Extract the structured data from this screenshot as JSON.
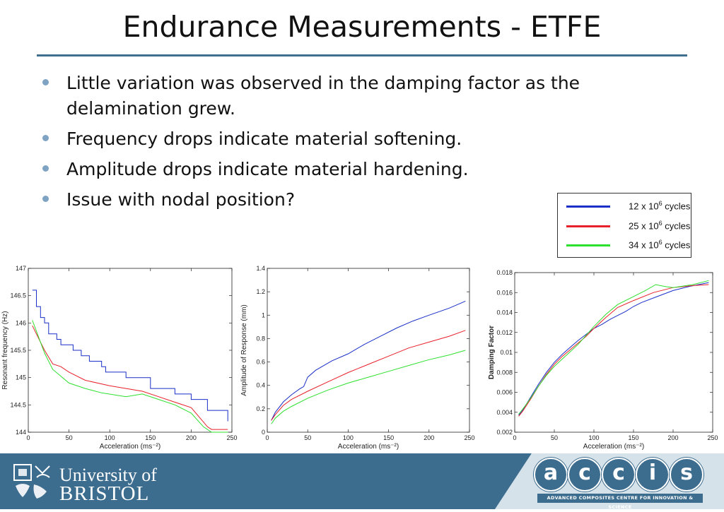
{
  "slide": {
    "title": "Endurance Measurements - ETFE",
    "bullets": [
      "Little variation was observed in the damping factor as the delamination grew.",
      "Frequency drops indicate material softening.",
      "Amplitude drops indicate material hardening.",
      "Issue with nodal position?"
    ]
  },
  "legend": [
    {
      "prefix": "12 x 10",
      "exp": "6",
      "suffix": " cycles",
      "color": "#1a2fc8"
    },
    {
      "prefix": "25 x 10",
      "exp": "6",
      "suffix": " cycles",
      "color": "#e8202a"
    },
    {
      "prefix": "34 x 10",
      "exp": "6",
      "suffix": " cycles",
      "color": "#2ee02e"
    }
  ],
  "chart_data": [
    {
      "type": "line",
      "xlabel": "Acceleration (ms⁻²)",
      "ylabel": "Resonant frequency (Hz)",
      "xlim": [
        0,
        250
      ],
      "ylim": [
        144,
        147
      ],
      "xticks": [
        0,
        50,
        100,
        150,
        200,
        250
      ],
      "yticks": [
        144,
        144.5,
        145,
        145.5,
        146,
        146.5,
        147
      ],
      "yticklabels": [
        "144",
        "144.5",
        "145",
        "145.5",
        "146",
        "146.5",
        "147"
      ],
      "series": [
        {
          "name": "12 x 10^6 cycles",
          "color": "#1a2fc8",
          "step": true,
          "points": [
            [
              5,
              146.6
            ],
            [
              10,
              146.3
            ],
            [
              15,
              146.1
            ],
            [
              20,
              146
            ],
            [
              25,
              145.8
            ],
            [
              30,
              145.8
            ],
            [
              35,
              145.7
            ],
            [
              40,
              145.6
            ],
            [
              50,
              145.6
            ],
            [
              55,
              145.5
            ],
            [
              60,
              145.5
            ],
            [
              65,
              145.4
            ],
            [
              70,
              145.4
            ],
            [
              75,
              145.3
            ],
            [
              85,
              145.3
            ],
            [
              90,
              145.2
            ],
            [
              95,
              145.1
            ],
            [
              115,
              145.1
            ],
            [
              120,
              145
            ],
            [
              145,
              145
            ],
            [
              150,
              144.8
            ],
            [
              160,
              144.8
            ],
            [
              180,
              144.7
            ],
            [
              200,
              144.6
            ],
            [
              220,
              144.4
            ],
            [
              245,
              144.2
            ]
          ]
        },
        {
          "name": "25 x 10^6 cycles",
          "color": "#e8202a",
          "step": false,
          "points": [
            [
              5,
              145.95
            ],
            [
              10,
              145.8
            ],
            [
              20,
              145.5
            ],
            [
              30,
              145.25
            ],
            [
              40,
              145.2
            ],
            [
              50,
              145.1
            ],
            [
              70,
              144.95
            ],
            [
              100,
              144.85
            ],
            [
              140,
              144.75
            ],
            [
              160,
              144.65
            ],
            [
              180,
              144.55
            ],
            [
              200,
              144.45
            ],
            [
              220,
              144.1
            ],
            [
              225,
              144.05
            ],
            [
              245,
              144.05
            ]
          ]
        },
        {
          "name": "34 x 10^6 cycles",
          "color": "#2ee02e",
          "step": false,
          "points": [
            [
              5,
              146.05
            ],
            [
              10,
              145.85
            ],
            [
              20,
              145.45
            ],
            [
              30,
              145.15
            ],
            [
              50,
              144.9
            ],
            [
              70,
              144.8
            ],
            [
              90,
              144.72
            ],
            [
              120,
              144.65
            ],
            [
              140,
              144.7
            ],
            [
              160,
              144.6
            ],
            [
              180,
              144.5
            ],
            [
              200,
              144.35
            ],
            [
              215,
              144.1
            ],
            [
              225,
              144
            ],
            [
              245,
              144
            ]
          ]
        }
      ]
    },
    {
      "type": "line",
      "xlabel": "Acceleration (ms⁻²)",
      "ylabel": "Amplitude of Response (mm)",
      "xlim": [
        0,
        250
      ],
      "ylim": [
        0,
        1.4
      ],
      "xticks": [
        0,
        50,
        100,
        150,
        200,
        250
      ],
      "yticks": [
        0,
        0.2,
        0.4,
        0.6,
        0.8,
        1,
        1.2,
        1.4
      ],
      "yticklabels": [
        "0",
        "0.2",
        "0.4",
        "0.6",
        "0.8",
        "1",
        "1.2",
        "1.4"
      ],
      "series": [
        {
          "name": "12 x 10^6 cycles",
          "color": "#1a2fc8",
          "step": false,
          "points": [
            [
              5,
              0.1
            ],
            [
              10,
              0.17
            ],
            [
              20,
              0.26
            ],
            [
              30,
              0.32
            ],
            [
              40,
              0.37
            ],
            [
              45,
              0.39
            ],
            [
              50,
              0.47
            ],
            [
              60,
              0.53
            ],
            [
              80,
              0.61
            ],
            [
              100,
              0.67
            ],
            [
              120,
              0.75
            ],
            [
              140,
              0.82
            ],
            [
              160,
              0.89
            ],
            [
              180,
              0.95
            ],
            [
              200,
              1.0
            ],
            [
              225,
              1.06
            ],
            [
              245,
              1.12
            ]
          ]
        },
        {
          "name": "25 x 10^6 cycles",
          "color": "#e8202a",
          "step": false,
          "points": [
            [
              5,
              0.1
            ],
            [
              10,
              0.15
            ],
            [
              20,
              0.23
            ],
            [
              30,
              0.28
            ],
            [
              50,
              0.35
            ],
            [
              75,
              0.43
            ],
            [
              100,
              0.51
            ],
            [
              125,
              0.58
            ],
            [
              150,
              0.65
            ],
            [
              175,
              0.72
            ],
            [
              200,
              0.77
            ],
            [
              225,
              0.82
            ],
            [
              245,
              0.87
            ]
          ]
        },
        {
          "name": "34 x 10^6 cycles",
          "color": "#2ee02e",
          "step": false,
          "points": [
            [
              5,
              0.07
            ],
            [
              10,
              0.12
            ],
            [
              20,
              0.18
            ],
            [
              30,
              0.22
            ],
            [
              50,
              0.29
            ],
            [
              75,
              0.36
            ],
            [
              100,
              0.42
            ],
            [
              125,
              0.47
            ],
            [
              150,
              0.52
            ],
            [
              175,
              0.57
            ],
            [
              200,
              0.62
            ],
            [
              225,
              0.66
            ],
            [
              245,
              0.7
            ]
          ]
        }
      ]
    },
    {
      "type": "line",
      "xlabel": "Acceleration (ms⁻²)",
      "ylabel": "Damping Factor",
      "xlim": [
        0,
        250
      ],
      "ylim": [
        0.002,
        0.018
      ],
      "xticks": [
        0,
        50,
        100,
        150,
        200,
        250
      ],
      "yticks": [
        0.002,
        0.004,
        0.006,
        0.008,
        0.01,
        0.012,
        0.014,
        0.016,
        0.018
      ],
      "yticklabels": [
        "0.002",
        "0.004",
        "0.006",
        "0.008",
        "0.01",
        "0.012",
        "0.014",
        "0.016",
        "0.018"
      ],
      "series": [
        {
          "name": "12 x 10^6 cycles",
          "color": "#1a2fc8",
          "step": false,
          "points": [
            [
              5,
              0.0037
            ],
            [
              10,
              0.0042
            ],
            [
              20,
              0.0055
            ],
            [
              30,
              0.0068
            ],
            [
              40,
              0.008
            ],
            [
              50,
              0.009
            ],
            [
              60,
              0.0098
            ],
            [
              70,
              0.0105
            ],
            [
              80,
              0.0112
            ],
            [
              90,
              0.0118
            ],
            [
              100,
              0.0124
            ],
            [
              110,
              0.0128
            ],
            [
              120,
              0.0133
            ],
            [
              130,
              0.0137
            ],
            [
              140,
              0.0141
            ],
            [
              150,
              0.0146
            ],
            [
              160,
              0.015
            ],
            [
              180,
              0.0156
            ],
            [
              200,
              0.0162
            ],
            [
              220,
              0.0166
            ],
            [
              245,
              0.017
            ]
          ]
        },
        {
          "name": "25 x 10^6 cycles",
          "color": "#e8202a",
          "step": false,
          "points": [
            [
              5,
              0.0036
            ],
            [
              10,
              0.0041
            ],
            [
              20,
              0.0053
            ],
            [
              30,
              0.0066
            ],
            [
              40,
              0.0078
            ],
            [
              50,
              0.0088
            ],
            [
              60,
              0.0096
            ],
            [
              75,
              0.0106
            ],
            [
              90,
              0.0116
            ],
            [
              100,
              0.0124
            ],
            [
              115,
              0.0135
            ],
            [
              130,
              0.0145
            ],
            [
              150,
              0.0152
            ],
            [
              175,
              0.016
            ],
            [
              200,
              0.0165
            ],
            [
              225,
              0.0167
            ],
            [
              245,
              0.0168
            ]
          ]
        },
        {
          "name": "34 x 10^6 cycles",
          "color": "#2ee02e",
          "step": false,
          "points": [
            [
              5,
              0.0038
            ],
            [
              10,
              0.0043
            ],
            [
              20,
              0.0054
            ],
            [
              30,
              0.0066
            ],
            [
              40,
              0.0077
            ],
            [
              50,
              0.0086
            ],
            [
              65,
              0.0097
            ],
            [
              80,
              0.0108
            ],
            [
              100,
              0.0126
            ],
            [
              115,
              0.0138
            ],
            [
              130,
              0.0148
            ],
            [
              150,
              0.0156
            ],
            [
              165,
              0.0162
            ],
            [
              178,
              0.0168
            ],
            [
              190,
              0.0166
            ],
            [
              200,
              0.0165
            ],
            [
              225,
              0.0168
            ],
            [
              245,
              0.0172
            ]
          ]
        }
      ]
    }
  ],
  "footer": {
    "university_line1": "University of",
    "university_line2": "BRISTOL",
    "accis_letters": [
      "a",
      "c",
      "c",
      "i",
      "s"
    ],
    "accis_tagline": "ADVANCED COMPOSITES CENTRE FOR INNOVATION & SCIENCE"
  }
}
